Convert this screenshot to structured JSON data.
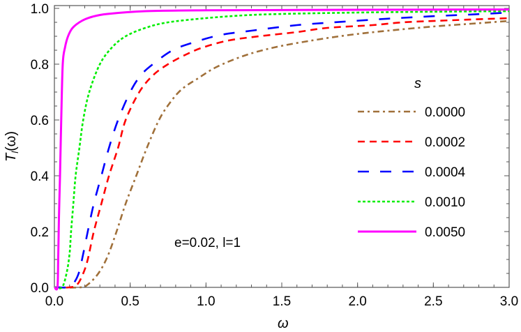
{
  "chart_data": {
    "type": "line",
    "xlabel": "ω",
    "ylabel_main": "T",
    "ylabel_sub": "l",
    "ylabel_arg": "(ω)",
    "xlim": [
      0,
      3.0
    ],
    "ylim": [
      0,
      1.0
    ],
    "xticks": [
      "0.0",
      "0.5",
      "1.0",
      "1.5",
      "2.0",
      "2.5",
      "3.0"
    ],
    "yticks": [
      "0.0",
      "0.2",
      "0.4",
      "0.6",
      "0.8",
      "1.0"
    ],
    "annotation": "e=0.02,  l=1",
    "legend_title": "s",
    "legend_placement": "right",
    "grid": false,
    "series": [
      {
        "name": "0.0000",
        "color": "#a0703a",
        "dash": "dot-dash",
        "x": [
          0,
          0.17,
          0.22,
          0.29,
          0.35,
          0.41,
          0.47,
          0.54,
          0.61,
          0.69,
          0.76,
          0.84,
          0.95,
          1.07,
          1.25,
          1.45,
          1.7,
          1.95,
          2.2,
          2.5,
          2.75,
          3.0
        ],
        "y": [
          0,
          0,
          0.01,
          0.05,
          0.11,
          0.2,
          0.3,
          0.4,
          0.5,
          0.6,
          0.66,
          0.71,
          0.75,
          0.79,
          0.83,
          0.86,
          0.885,
          0.905,
          0.92,
          0.935,
          0.945,
          0.955
        ]
      },
      {
        "name": "0.0002",
        "color": "#ff0000",
        "dash": "dashed",
        "x": [
          0,
          0.1,
          0.15,
          0.19,
          0.22,
          0.26,
          0.31,
          0.36,
          0.42,
          0.47,
          0.56,
          0.65,
          0.75,
          0.87,
          0.98,
          1.15,
          1.35,
          1.6,
          1.8,
          2.1,
          2.3,
          2.6,
          3.0
        ],
        "y": [
          0,
          0,
          0.01,
          0.05,
          0.1,
          0.2,
          0.3,
          0.4,
          0.5,
          0.6,
          0.7,
          0.76,
          0.8,
          0.835,
          0.86,
          0.885,
          0.9,
          0.915,
          0.93,
          0.94,
          0.95,
          0.957,
          0.965
        ]
      },
      {
        "name": "0.0004",
        "color": "#0000ff",
        "dash": "long-dashed",
        "x": [
          0,
          0.08,
          0.12,
          0.16,
          0.19,
          0.22,
          0.26,
          0.31,
          0.36,
          0.42,
          0.5,
          0.57,
          0.65,
          0.78,
          0.93,
          1.1,
          1.3,
          1.6,
          1.9,
          2.2,
          2.5,
          2.75,
          3.0
        ],
        "y": [
          0,
          0,
          0.01,
          0.05,
          0.12,
          0.2,
          0.3,
          0.4,
          0.5,
          0.6,
          0.7,
          0.76,
          0.8,
          0.85,
          0.88,
          0.905,
          0.92,
          0.94,
          0.952,
          0.963,
          0.972,
          0.978,
          0.985
        ]
      },
      {
        "name": "0.0010",
        "color": "#00ee00",
        "dash": "dotted",
        "x": [
          0,
          0.05,
          0.08,
          0.1,
          0.11,
          0.125,
          0.14,
          0.165,
          0.19,
          0.23,
          0.3,
          0.38,
          0.47,
          0.6,
          0.75,
          1.0,
          1.25,
          1.5,
          2.0,
          2.5,
          3.0
        ],
        "y": [
          0,
          0,
          0.05,
          0.12,
          0.2,
          0.3,
          0.4,
          0.5,
          0.6,
          0.7,
          0.8,
          0.86,
          0.9,
          0.93,
          0.95,
          0.965,
          0.975,
          0.98,
          0.985,
          0.988,
          0.99
        ]
      },
      {
        "name": "0.0050",
        "color": "#ff00ff",
        "dash": "solid",
        "x": [
          0,
          0.02,
          0.025,
          0.03,
          0.037,
          0.045,
          0.055,
          0.07,
          0.09,
          0.12,
          0.18,
          0.25,
          0.35,
          0.6,
          1.0,
          2.0,
          3.0
        ],
        "y": [
          0,
          0,
          0.1,
          0.25,
          0.4,
          0.6,
          0.8,
          0.86,
          0.9,
          0.93,
          0.955,
          0.97,
          0.98,
          0.99,
          0.993,
          0.995,
          0.996
        ]
      }
    ]
  }
}
